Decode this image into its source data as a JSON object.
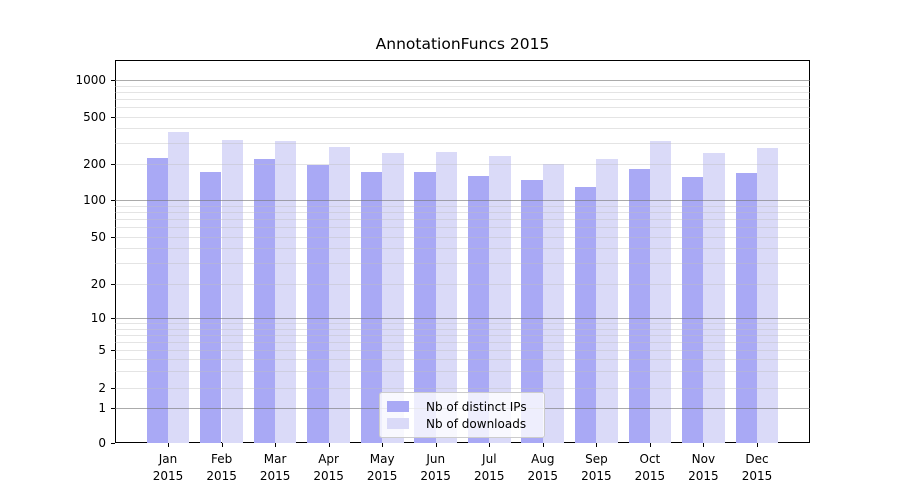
{
  "title": "AnnotationFuncs 2015",
  "chart_data": {
    "type": "bar",
    "title": "AnnotationFuncs 2015",
    "categories": [
      "Jan",
      "Feb",
      "Mar",
      "Apr",
      "May",
      "Jun",
      "Jul",
      "Aug",
      "Sep",
      "Oct",
      "Nov",
      "Dec"
    ],
    "year": "2015",
    "series": [
      {
        "name": "Nb of distinct IPs",
        "color": "#a9a9f5",
        "values": [
          224,
          172,
          221,
          198,
          173,
          173,
          160,
          146,
          128,
          181,
          157,
          167
        ]
      },
      {
        "name": "Nb of downloads",
        "color": "#dadaf8",
        "values": [
          370,
          317,
          311,
          277,
          249,
          253,
          233,
          200,
          219,
          314,
          248,
          271
        ]
      }
    ],
    "xlabel": "",
    "ylabel": "",
    "yscale": "symlog",
    "y_ticks": [
      1000,
      500,
      200,
      100,
      50,
      20,
      10,
      5,
      2,
      1,
      0
    ],
    "ylim": [
      0,
      1500
    ],
    "grid": true,
    "legend_position": "lower center",
    "colors": {
      "bar_distinct_ips": "#a9a9f5",
      "bar_downloads": "#dadaf8",
      "grid_major": "#b3b3b3",
      "grid_minor": "#e6e6e6",
      "axis": "#000000",
      "background": "#ffffff"
    }
  }
}
